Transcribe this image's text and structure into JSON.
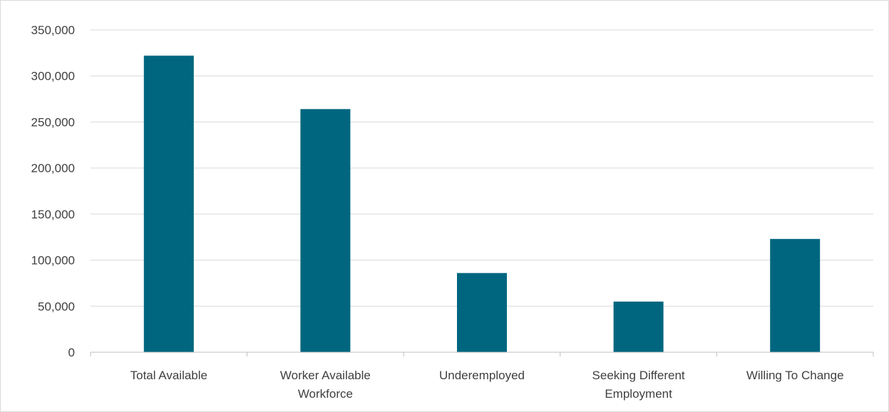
{
  "chart_data": {
    "type": "bar",
    "title": "",
    "xlabel": "",
    "ylabel": "",
    "categories": [
      [
        "Total Available"
      ],
      [
        "Worker Available",
        "Workforce"
      ],
      [
        "Underemployed"
      ],
      [
        "Seeking Different",
        "Employment"
      ],
      [
        "Willing To Change"
      ]
    ],
    "values": [
      322000,
      264000,
      86000,
      55000,
      123000
    ],
    "ylim": [
      0,
      350000
    ],
    "yticks": [
      0,
      50000,
      100000,
      150000,
      200000,
      250000,
      300000,
      350000
    ],
    "ytick_labels": [
      "0",
      "50,000",
      "100,000",
      "150,000",
      "200,000",
      "250,000",
      "300,000",
      "350,000"
    ],
    "grid": true,
    "legend": "none",
    "bar_color": "#00667f",
    "grid_color": "#d9d9d9",
    "axis_color": "#bfbfbf"
  }
}
